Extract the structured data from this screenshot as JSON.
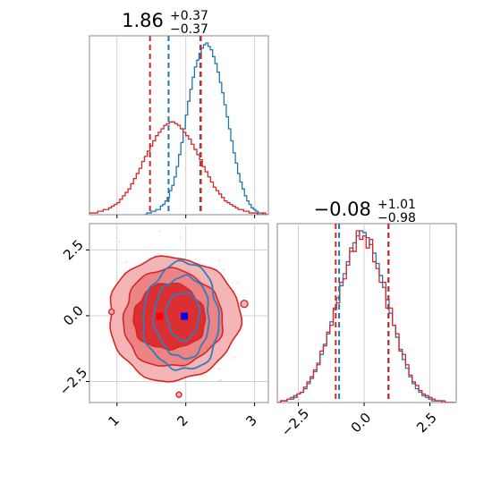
{
  "chart_data": [
    {
      "type": "histogram",
      "panel": "top-left",
      "title": {
        "value": "1.86",
        "plus": "+0.37",
        "minus": "−0.37"
      },
      "xlim": [
        0.6,
        3.2
      ],
      "x_tick_values": [
        1,
        2,
        3
      ],
      "quantile_lines": {
        "blue": [
          1.75,
          2.21
        ],
        "red": [
          1.48,
          2.22
        ]
      },
      "series": [
        {
          "color": "#1f77b4",
          "x_start": 1.4,
          "bin_width": 0.033,
          "values": [
            0,
            1,
            1,
            2,
            2,
            3,
            3,
            5,
            6,
            8,
            10,
            14,
            17,
            22,
            28,
            35,
            42,
            50,
            58,
            66,
            73,
            80,
            86,
            90,
            94,
            97,
            99,
            100,
            98,
            96,
            92,
            88,
            83,
            77,
            71,
            64,
            57,
            50,
            43,
            36,
            30,
            24,
            19,
            15,
            11,
            8,
            6,
            4,
            3,
            2,
            1,
            1,
            0
          ]
        },
        {
          "color": "#d62728",
          "x_start": 0.6,
          "bin_width": 0.04,
          "values": [
            1,
            1,
            1,
            2,
            2,
            3,
            3,
            4,
            5,
            6,
            7,
            9,
            11,
            13,
            15,
            18,
            21,
            24,
            27,
            31,
            34,
            37,
            40,
            43,
            46,
            48,
            50,
            52,
            53,
            54,
            54,
            53,
            52,
            50,
            48,
            46,
            44,
            41,
            38,
            35,
            32,
            28,
            25,
            22,
            19,
            16,
            14,
            12,
            10,
            8,
            7,
            6,
            5,
            4,
            3,
            3,
            2,
            2,
            1,
            1,
            1,
            0,
            0,
            1,
            0
          ]
        }
      ]
    },
    {
      "type": "contour",
      "panel": "bottom-left",
      "xlim": [
        0.6,
        3.2
      ],
      "ylim": [
        -3.3,
        3.5
      ],
      "x_ticks": [
        "1",
        "2",
        "3"
      ],
      "x_tick_values": [
        1,
        2,
        3
      ],
      "y_ticks": [
        "−2.5",
        "0.0",
        "2.5"
      ],
      "y_tick_values": [
        -2.5,
        0.0,
        2.5
      ],
      "grid": true,
      "markers": [
        {
          "color": "#0000ff",
          "x": 1.98,
          "y": -0.02
        },
        {
          "color": "#ff0000",
          "x": 1.62,
          "y": -0.02
        }
      ],
      "red_contours": [
        {
          "cx": 1.82,
          "cy": -0.1,
          "rx": 0.95,
          "ry": 2.35
        },
        {
          "cx": 1.8,
          "cy": -0.1,
          "rx": 0.72,
          "ry": 1.85
        },
        {
          "cx": 1.76,
          "cy": -0.05,
          "rx": 0.52,
          "ry": 1.25
        }
      ],
      "blue_contours": [
        {
          "cx": 1.94,
          "cy": -0.05,
          "rx": 0.55,
          "ry": 2.05
        },
        {
          "cx": 1.95,
          "cy": -0.05,
          "rx": 0.4,
          "ry": 1.55
        },
        {
          "cx": 1.96,
          "cy": 0.0,
          "rx": 0.24,
          "ry": 0.9
        }
      ]
    },
    {
      "type": "histogram",
      "panel": "bottom-right",
      "title": {
        "value": "−0.08",
        "plus": "+1.01",
        "minus": "−0.98"
      },
      "xlim": [
        -3.3,
        3.5
      ],
      "x_ticks": [
        "−2.5",
        "0.0",
        "2.5"
      ],
      "x_tick_values": [
        -2.5,
        0.0,
        2.5
      ],
      "quantile_lines": {
        "blue": [
          -0.95,
          0.92
        ],
        "red": [
          -1.08,
          0.93
        ]
      },
      "series": [
        {
          "color": "#1f77b4",
          "x_start": -3.3,
          "bin_width": 0.125,
          "values": [
            0,
            1,
            1,
            2,
            3,
            4,
            5,
            6,
            8,
            11,
            14,
            18,
            23,
            28,
            34,
            40,
            47,
            54,
            61,
            68,
            75,
            82,
            88,
            93,
            97,
            100,
            99,
            96,
            92,
            87,
            81,
            74,
            67,
            60,
            52,
            45,
            38,
            31,
            25,
            20,
            15,
            11,
            8,
            6,
            4,
            3,
            2,
            1,
            1,
            1,
            0,
            0,
            0,
            0
          ]
        },
        {
          "color": "#d62728",
          "x_start": -3.3,
          "bin_width": 0.125,
          "values": [
            0,
            1,
            1,
            2,
            2,
            3,
            5,
            6,
            9,
            12,
            15,
            19,
            22,
            30,
            33,
            41,
            45,
            55,
            58,
            70,
            72,
            80,
            90,
            88,
            100,
            95,
            97,
            90,
            95,
            82,
            78,
            70,
            70,
            55,
            55,
            45,
            40,
            30,
            28,
            22,
            16,
            12,
            10,
            7,
            5,
            4,
            3,
            2,
            1,
            1,
            1,
            0,
            0,
            0
          ]
        }
      ]
    }
  ]
}
